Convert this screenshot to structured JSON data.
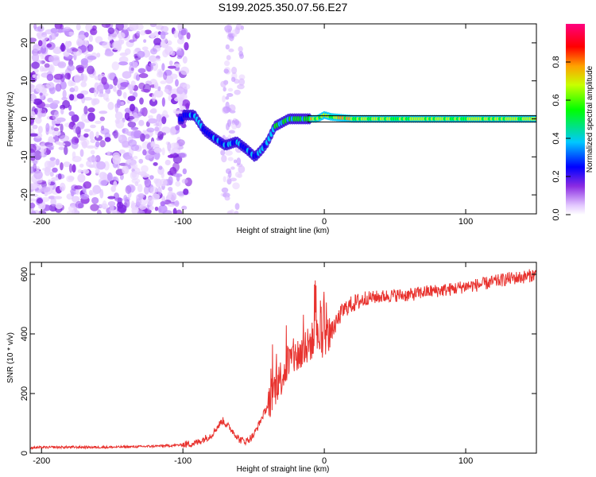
{
  "figure": {
    "title": "S199.2025.350.07.56.E27"
  },
  "chart_data": [
    {
      "type": "heatmap",
      "xlabel": "Height of straight line (km)",
      "ylabel": "Frequency (Hz)",
      "xlim": [
        -208,
        150
      ],
      "ylim": [
        -25,
        25
      ],
      "xticks": [
        -200,
        -100,
        0,
        100
      ],
      "yticks": [
        -20,
        -10,
        0,
        10,
        20
      ],
      "tick_labels": {
        "x": [
          "-200",
          "-100",
          "0",
          "100"
        ],
        "y": [
          "-20",
          "-10",
          "0",
          "10",
          "20"
        ]
      },
      "ridge": {
        "description_points_x_km": [
          -100,
          -92,
          -85,
          -78,
          -70,
          -62,
          -55,
          -49,
          -44,
          -40,
          -35,
          -30,
          -25,
          -20,
          -12,
          -5,
          0,
          5,
          20,
          60,
          84,
          100,
          150
        ],
        "frequency_hz": [
          1,
          1,
          -3,
          -5,
          -7,
          -6,
          -8,
          -10,
          -8,
          -6,
          -2,
          -1,
          0,
          0,
          0,
          0,
          1,
          0.5,
          0,
          0,
          0,
          0,
          0
        ]
      },
      "horizontal_lines_hz": [
        0.8,
        -0.8
      ],
      "colorbar": {
        "label": "Normalized spectral amplitude",
        "range": [
          0.0,
          1.0
        ],
        "ticks": [
          0.0,
          0.2,
          0.4,
          0.6,
          0.8
        ],
        "tick_labels": [
          "0.0",
          "0.2",
          "0.4",
          "0.6",
          "0.8"
        ]
      }
    },
    {
      "type": "line",
      "xlabel": "Height of straight line (km)",
      "ylabel": "SNR (10 * v/v)",
      "xlim": [
        -208,
        150
      ],
      "ylim": [
        0,
        640
      ],
      "xticks": [
        -200,
        -100,
        0,
        100
      ],
      "yticks": [
        0,
        200,
        400,
        600
      ],
      "tick_labels": {
        "x": [
          "-200",
          "-100",
          "0",
          "100"
        ],
        "y": [
          "0",
          "200",
          "400",
          "600"
        ]
      },
      "color": "#e8322e",
      "series": [
        {
          "name": "SNR",
          "x": [
            -208,
            -190,
            -170,
            -150,
            -130,
            -110,
            -100,
            -90,
            -80,
            -72,
            -68,
            -64,
            -60,
            -55,
            -50,
            -45,
            -40,
            -35,
            -30,
            -26,
            -22,
            -18,
            -14,
            -10,
            -6,
            -2,
            0,
            4,
            8,
            12,
            16,
            20,
            25,
            30,
            40,
            50,
            60,
            70,
            80,
            90,
            100,
            110,
            120,
            130,
            140,
            150
          ],
          "y": [
            18,
            20,
            20,
            20,
            22,
            25,
            28,
            35,
            60,
            110,
            90,
            70,
            45,
            40,
            60,
            110,
            160,
            220,
            260,
            300,
            320,
            330,
            340,
            370,
            390,
            380,
            390,
            400,
            430,
            470,
            490,
            500,
            510,
            520,
            525,
            530,
            530,
            540,
            545,
            550,
            560,
            565,
            575,
            585,
            590,
            600
          ]
        }
      ]
    }
  ]
}
